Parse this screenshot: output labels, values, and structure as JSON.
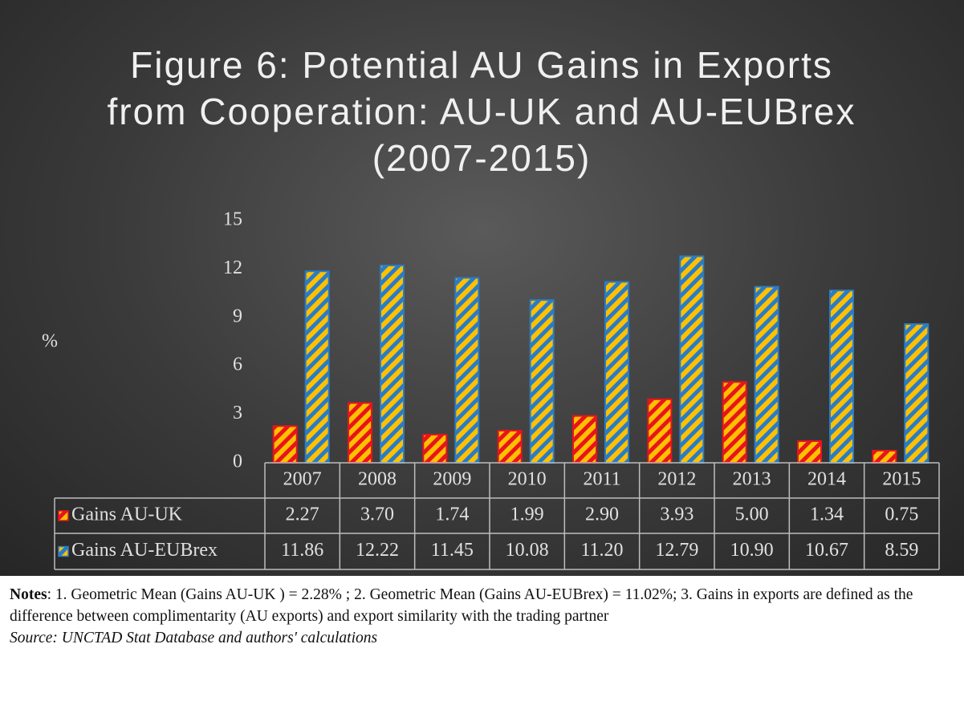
{
  "chart_data": {
    "type": "bar",
    "title": "Figure 6: Potential AU Gains in Exports from Cooperation: AU-UK and AU-EUBrex (2007-2015)",
    "y_label": "%",
    "categories": [
      "2007",
      "2008",
      "2009",
      "2010",
      "2011",
      "2012",
      "2013",
      "2014",
      "2015"
    ],
    "series": [
      {
        "name": "Gains AU-UK",
        "color": "#e8141c",
        "values": [
          2.27,
          3.7,
          1.74,
          1.99,
          2.9,
          3.93,
          5,
          1.34,
          0.75
        ],
        "value_labels": [
          "2.27",
          "3.70",
          "1.74",
          "1.99",
          "2.90",
          "3.93",
          "5.00",
          "1.34",
          "0.75"
        ]
      },
      {
        "name": "Gains AU-EUBrex",
        "color": "#2a7cc6",
        "values": [
          11.86,
          12.22,
          11.45,
          10.08,
          11.2,
          12.79,
          10.9,
          10.67,
          8.59
        ],
        "value_labels": [
          "11.86",
          "12.22",
          "11.45",
          "10.08",
          "11.20",
          "12.79",
          "10.90",
          "10.67",
          "8.59"
        ]
      }
    ],
    "hatch_background": "#ffc000",
    "ylim": [
      0,
      15
    ],
    "yticks": [
      0,
      3,
      6,
      9,
      12,
      15
    ],
    "grid": false,
    "data_table": true
  },
  "notes": {
    "label": "Notes",
    "text": ": 1. Geometric Mean (Gains AU-UK ) = 2.28% ; 2. Geometric Mean (Gains AU-EUBrex) = 11.02%; 3. Gains in exports are defined as the difference between complimentarity (AU exports) and export similarity with the trading partner",
    "source": "Source: UNCTAD Stat Database and authors' calculations"
  }
}
